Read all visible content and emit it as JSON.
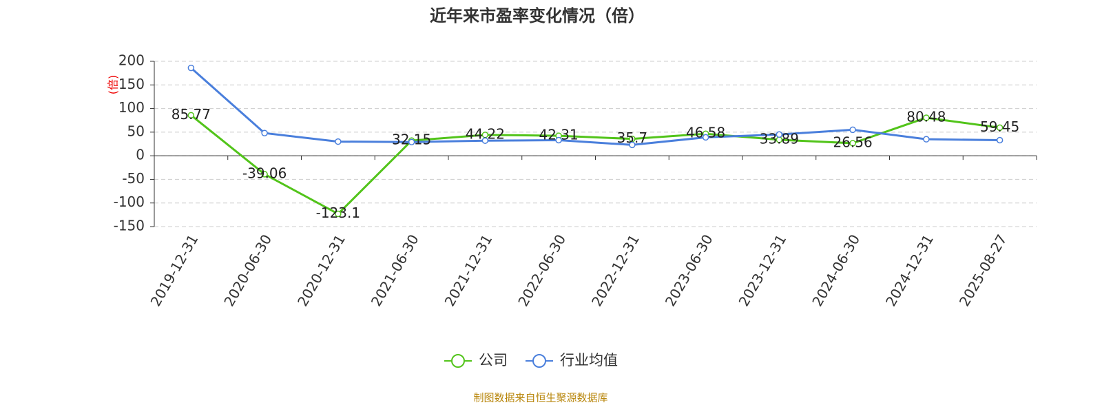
{
  "chart_data": {
    "type": "line",
    "title": "近年来市盈率变化情况（倍）",
    "y_label": "(倍)",
    "source": "制图数据来自恒生聚源数据库",
    "categories": [
      "2019-12-31",
      "2020-06-30",
      "2020-12-31",
      "2021-06-30",
      "2021-12-31",
      "2022-06-30",
      "2022-12-31",
      "2023-06-30",
      "2023-12-31",
      "2024-06-30",
      "2024-12-31",
      "2025-08-27"
    ],
    "series": [
      {
        "name": "公司",
        "color": "#52c41a",
        "show_labels": true,
        "values": [
          85.77,
          -39.06,
          -123.1,
          32.15,
          44.22,
          42.31,
          35.7,
          46.58,
          33.89,
          26.56,
          80.48,
          59.45
        ]
      },
      {
        "name": "行业均值",
        "color": "#4a7fdc",
        "show_labels": false,
        "values": [
          186,
          48,
          30,
          29,
          32,
          33,
          23,
          39,
          45,
          55,
          35,
          33
        ]
      }
    ],
    "ylim": [
      -150,
      200
    ],
    "yticks": [
      -150,
      -100,
      -50,
      0,
      50,
      100,
      150,
      200
    ],
    "grid": true,
    "legend": "bottom"
  }
}
